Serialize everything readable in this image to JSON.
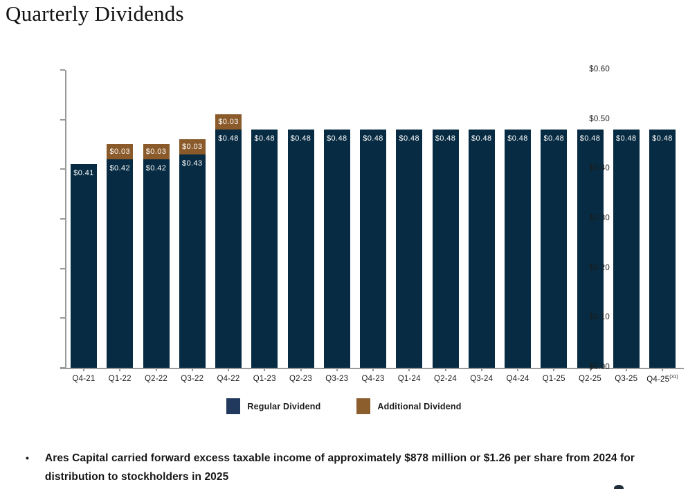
{
  "title": "Quarterly Dividends",
  "chart_data": {
    "type": "bar",
    "stacked": true,
    "title": "Quarterly Dividends",
    "xlabel": "",
    "ylabel": "",
    "ylim": [
      0,
      0.6
    ],
    "ytick_step": 0.1,
    "ytick_labels": [
      "$0.00",
      "$0.10",
      "$0.20",
      "$0.30",
      "$0.40",
      "$0.50",
      "$0.60"
    ],
    "grid": false,
    "legend_position": "bottom",
    "value_prefix": "$",
    "categories": [
      "Q4-21",
      "Q1-22",
      "Q2-22",
      "Q3-22",
      "Q4-22",
      "Q1-23",
      "Q2-23",
      "Q3-23",
      "Q4-23",
      "Q1-24",
      "Q2-24",
      "Q3-24",
      "Q4-24",
      "Q1-25",
      "Q2-25",
      "Q3-25",
      "Q4-25"
    ],
    "last_category_superscript": "(31)",
    "series": [
      {
        "name": "Regular Dividend",
        "color": "#072B42",
        "values": [
          0.41,
          0.42,
          0.42,
          0.43,
          0.48,
          0.48,
          0.48,
          0.48,
          0.48,
          0.48,
          0.48,
          0.48,
          0.48,
          0.48,
          0.48,
          0.48,
          0.48
        ]
      },
      {
        "name": "Additional Dividend",
        "color": "#8A5A2A",
        "values": [
          0,
          0.03,
          0.03,
          0.03,
          0.03,
          0,
          0,
          0,
          0,
          0,
          0,
          0,
          0,
          0,
          0,
          0,
          0
        ]
      }
    ]
  },
  "legend": [
    {
      "label": "Regular Dividend",
      "color": "#20395C"
    },
    {
      "label": "Additional Dividend",
      "color": "#8C5E2E"
    }
  ],
  "footnote": {
    "bullet": "•",
    "text": "Ares Capital carried forward excess taxable income of approximately $878 million or $1.26 per share from 2024 for distribution to stockholders in 2025"
  },
  "colors": {
    "axis": "#999999",
    "bar_regular": "#072B42",
    "bar_additional": "#8A5A2A",
    "bar_value_text": "#ffffff"
  }
}
